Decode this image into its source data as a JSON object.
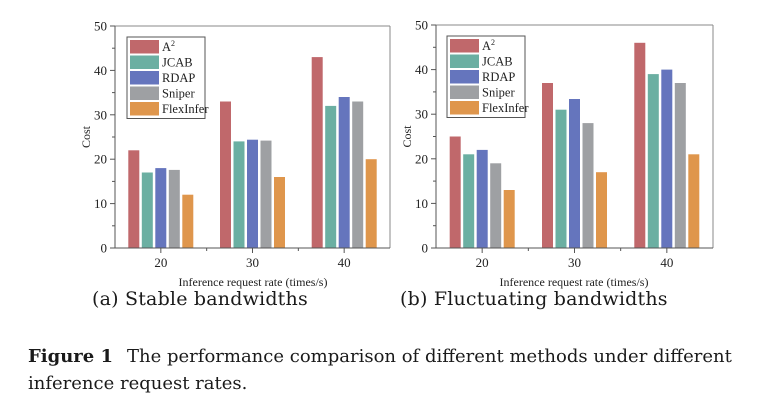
{
  "chart_data": [
    {
      "type": "bar",
      "title": "",
      "subcaption": "(a) Stable bandwidths",
      "xlabel": "Inference request rate (times/s)",
      "ylabel": "Cost",
      "categories": [
        "20",
        "30",
        "40"
      ],
      "ylim": [
        0,
        50
      ],
      "yticks": [
        0,
        10,
        20,
        30,
        40,
        50
      ],
      "grid": false,
      "legend": "top-left",
      "series": [
        {
          "name": "A",
          "sup": "2",
          "color": "#C0686B",
          "values": [
            22,
            33,
            43
          ]
        },
        {
          "name": "JCAB",
          "color": "#6BAFA2",
          "values": [
            17,
            24,
            32
          ]
        },
        {
          "name": "RDAP",
          "color": "#6575BD",
          "values": [
            18,
            24.4,
            34
          ]
        },
        {
          "name": "Sniper",
          "color": "#9EA0A3",
          "values": [
            17.6,
            24.2,
            33
          ]
        },
        {
          "name": "FlexInfer",
          "color": "#DF964C",
          "values": [
            12,
            16,
            20
          ]
        }
      ]
    },
    {
      "type": "bar",
      "title": "",
      "subcaption": "(b) Fluctuating bandwidths",
      "xlabel": "Inference request rate (times/s)",
      "ylabel": "Cost",
      "categories": [
        "20",
        "30",
        "40"
      ],
      "ylim": [
        0,
        50
      ],
      "yticks": [
        0,
        10,
        20,
        30,
        40,
        50
      ],
      "grid": false,
      "legend": "top-left",
      "series": [
        {
          "name": "A",
          "sup": "2",
          "color": "#C0686B",
          "values": [
            25,
            37,
            46
          ]
        },
        {
          "name": "JCAB",
          "color": "#6BAFA2",
          "values": [
            21,
            31,
            39
          ]
        },
        {
          "name": "RDAP",
          "color": "#6575BD",
          "values": [
            22,
            33.4,
            40
          ]
        },
        {
          "name": "Sniper",
          "color": "#9EA0A3",
          "values": [
            19,
            28,
            37
          ]
        },
        {
          "name": "FlexInfer",
          "color": "#DF964C",
          "values": [
            13,
            17,
            21
          ]
        }
      ]
    }
  ],
  "caption": {
    "label": "Figure 1",
    "text": "The performance comparison of different methods under different inference request rates."
  }
}
